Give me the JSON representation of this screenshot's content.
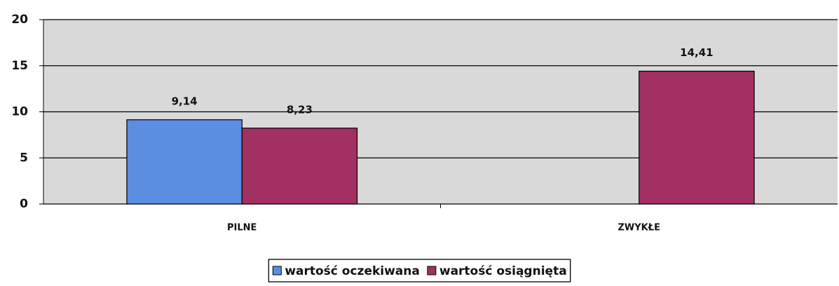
{
  "chart_data": {
    "type": "bar",
    "categories": [
      "PILNE",
      "ZWYKŁE"
    ],
    "series": [
      {
        "name": "wartość oczekiwana",
        "color": "#5b8de0",
        "values": [
          9.14,
          null
        ],
        "value_labels": [
          "9,14",
          null
        ]
      },
      {
        "name": "wartość osiągnięta",
        "color": "#a33063",
        "values": [
          8.23,
          14.41
        ],
        "value_labels": [
          "8,23",
          "14,41"
        ]
      }
    ],
    "ylim": [
      0,
      20
    ],
    "yticks": [
      0,
      5,
      10,
      15,
      20
    ],
    "grid": true,
    "legend": "bottom"
  }
}
